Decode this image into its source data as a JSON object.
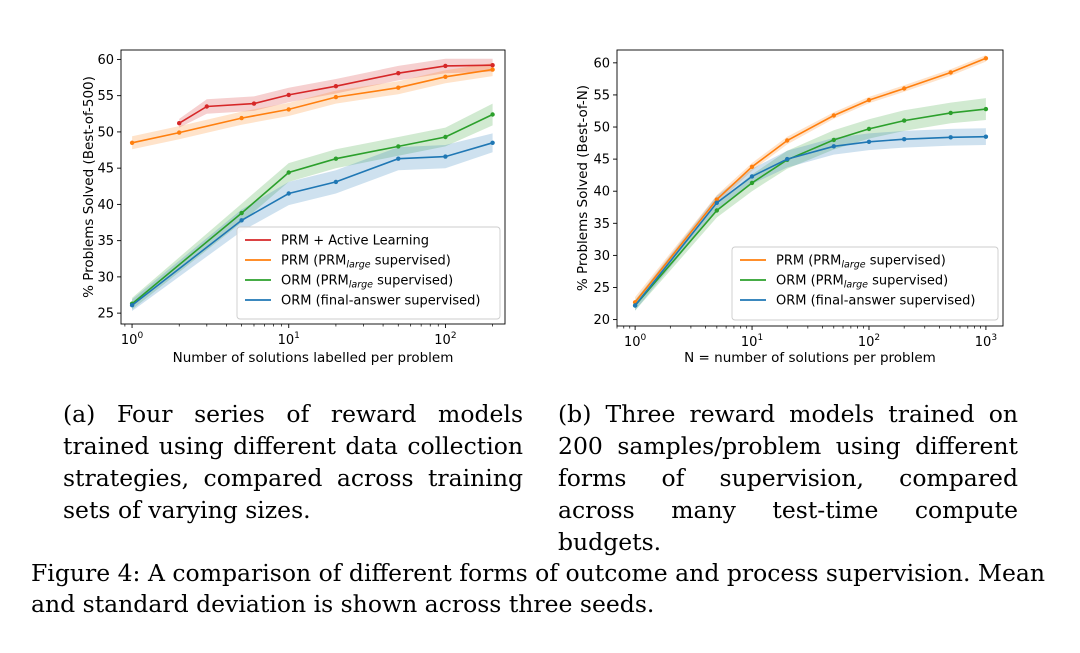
{
  "chart_data": [
    {
      "type": "line",
      "ylabel": "% Problems Solved (Best-of-500)",
      "xlabel": "Number of solutions labelled per problem",
      "xscale": "log",
      "xlim": [
        0.85,
        240
      ],
      "ylim": [
        23.5,
        61.3
      ],
      "yticks": [
        25,
        30,
        35,
        40,
        45,
        50,
        55,
        60
      ],
      "xticks": [
        {
          "value": 1,
          "base": "10",
          "exp": "0"
        },
        {
          "value": 10,
          "base": "10",
          "exp": "1"
        },
        {
          "value": 100,
          "base": "10",
          "exp": "2"
        }
      ],
      "grid": false,
      "legend_position": "lower-right",
      "series": [
        {
          "name": "PRM + Active Learning",
          "color": "#d62728",
          "x": [
            2,
            3,
            6,
            10,
            20,
            50,
            100,
            200
          ],
          "y": [
            51.2,
            53.5,
            53.9,
            55.1,
            56.3,
            58.1,
            59.1,
            59.2
          ],
          "std": [
            0.6,
            1.0,
            1.0,
            1.0,
            1.0,
            1.0,
            1.0,
            0.9
          ]
        },
        {
          "name": "PRM (PRMlarge supervised)",
          "name_pre": "PRM (PRM",
          "name_sub": "large",
          "name_post": " supervised)",
          "color": "#ff7f0e",
          "x": [
            1,
            2,
            5,
            10,
            20,
            50,
            100,
            200
          ],
          "y": [
            48.5,
            49.9,
            51.9,
            53.1,
            54.8,
            56.1,
            57.6,
            58.6
          ],
          "std": [
            0.9,
            0.9,
            0.9,
            0.9,
            0.9,
            0.9,
            0.9,
            0.9
          ]
        },
        {
          "name": "ORM (PRMlarge supervised)",
          "name_pre": "ORM (PRM",
          "name_sub": "large",
          "name_post": " supervised)",
          "color": "#2ca02c",
          "x": [
            1,
            5,
            10,
            20,
            50,
            100,
            200
          ],
          "y": [
            26.3,
            38.8,
            44.4,
            46.3,
            48.0,
            49.3,
            52.4
          ],
          "std": [
            0.8,
            1.3,
            1.3,
            1.3,
            1.3,
            1.3,
            1.5
          ]
        },
        {
          "name": "ORM (final-answer supervised)",
          "color": "#1f77b4",
          "x": [
            1,
            5,
            10,
            20,
            50,
            100,
            200
          ],
          "y": [
            26.1,
            37.8,
            41.5,
            43.1,
            46.3,
            46.6,
            48.5
          ],
          "std": [
            0.8,
            1.5,
            1.6,
            1.6,
            1.6,
            1.6,
            1.3
          ]
        }
      ]
    },
    {
      "type": "line",
      "ylabel": "% Problems Solved (Best-of-N)",
      "xlabel": "N = number of solutions per problem",
      "xscale": "log",
      "xlim": [
        0.7,
        1400
      ],
      "ylim": [
        19.0,
        62.0
      ],
      "yticks": [
        20,
        25,
        30,
        35,
        40,
        45,
        50,
        55,
        60
      ],
      "xticks": [
        {
          "value": 1,
          "base": "10",
          "exp": "0"
        },
        {
          "value": 10,
          "base": "10",
          "exp": "1"
        },
        {
          "value": 100,
          "base": "10",
          "exp": "2"
        },
        {
          "value": 1000,
          "base": "10",
          "exp": "3"
        }
      ],
      "grid": false,
      "legend_position": "lower-right",
      "series": [
        {
          "name": "PRM (PRMlarge supervised)",
          "name_pre": "PRM (PRM",
          "name_sub": "large",
          "name_post": " supervised)",
          "color": "#ff7f0e",
          "x": [
            1,
            5,
            10,
            20,
            50,
            100,
            200,
            500,
            1000
          ],
          "y": [
            22.7,
            38.7,
            43.8,
            47.9,
            51.8,
            54.2,
            56.0,
            58.5,
            60.7
          ],
          "std": [
            0.8,
            0.7,
            0.6,
            0.6,
            0.5,
            0.5,
            0.5,
            0.5,
            0.5
          ]
        },
        {
          "name": "ORM (PRMlarge supervised)",
          "name_pre": "ORM (PRM",
          "name_sub": "large",
          "name_post": " supervised)",
          "color": "#2ca02c",
          "x": [
            1,
            5,
            10,
            20,
            50,
            100,
            200,
            500,
            1000
          ],
          "y": [
            22.2,
            37.0,
            41.3,
            44.9,
            48.0,
            49.7,
            51.0,
            52.2,
            52.8
          ],
          "std": [
            0.8,
            1.1,
            1.3,
            1.4,
            1.5,
            1.5,
            1.6,
            1.6,
            1.7
          ]
        },
        {
          "name": "ORM (final-answer supervised)",
          "color": "#1f77b4",
          "x": [
            1,
            5,
            10,
            20,
            50,
            100,
            200,
            500,
            1000
          ],
          "y": [
            22.2,
            38.2,
            42.3,
            45.0,
            47.0,
            47.7,
            48.1,
            48.4,
            48.5
          ],
          "std": [
            0.8,
            1.1,
            1.2,
            1.3,
            1.3,
            1.3,
            1.3,
            1.3,
            1.3
          ]
        }
      ]
    }
  ],
  "captions": {
    "a": "(a) Four series of reward models trained using different data collection strategies, compared across training sets of varying sizes.",
    "b": "(b) Three reward models trained on 200 samples/problem using different forms of supervision, compared across many test-time compute budgets."
  },
  "figure_caption": "Figure 4: A comparison of different forms of outcome and process supervision. Mean and standard deviation is shown across three seeds."
}
